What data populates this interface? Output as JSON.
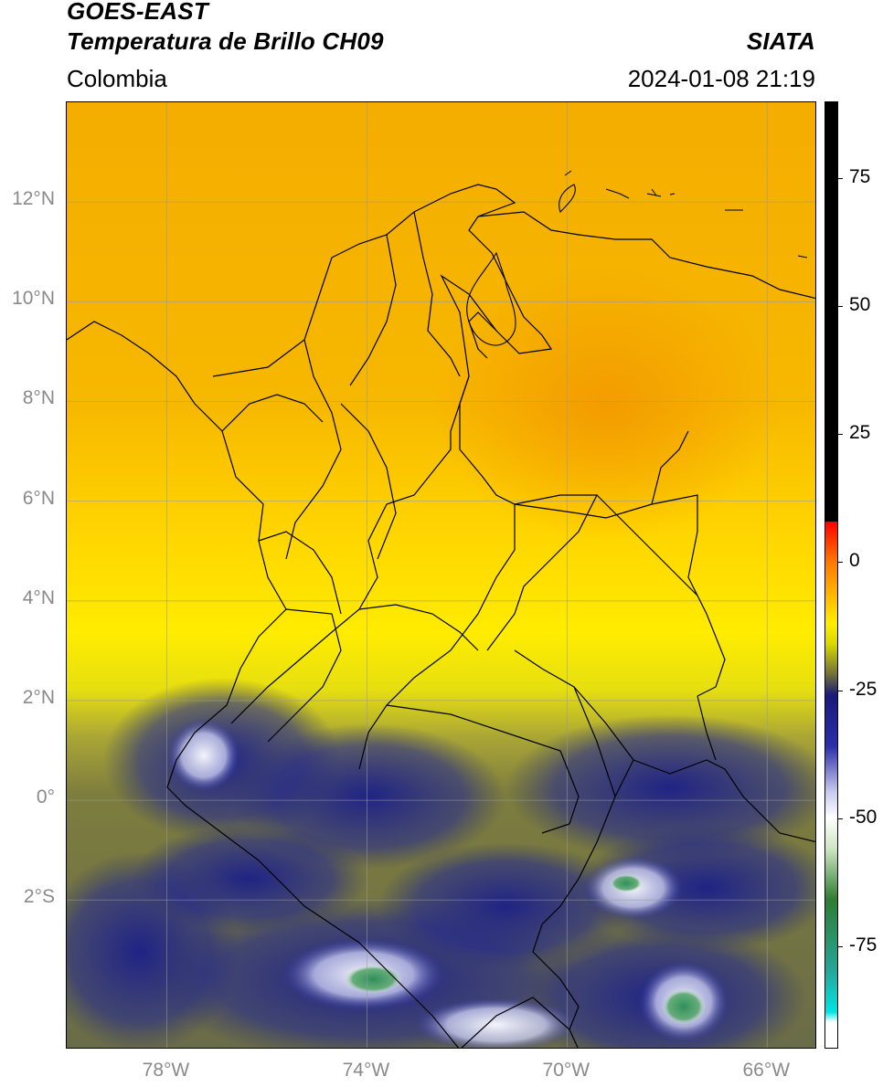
{
  "header": {
    "satellite": "GOES-EAST",
    "product": "Temperatura de Brillo CH09",
    "brand": "SIATA",
    "region": "Colombia",
    "datetime": "2024-01-08 21:19"
  },
  "map": {
    "lon_range": [
      -80,
      -65
    ],
    "lat_range": [
      -5,
      14
    ],
    "lat_ticks": [
      {
        "value": 12,
        "label": "12°N"
      },
      {
        "value": 10,
        "label": "10°N"
      },
      {
        "value": 8,
        "label": "8°N"
      },
      {
        "value": 6,
        "label": "6°N"
      },
      {
        "value": 4,
        "label": "4°N"
      },
      {
        "value": 2,
        "label": "2°N"
      },
      {
        "value": 0,
        "label": "0°"
      },
      {
        "value": -2,
        "label": "2°S"
      }
    ],
    "lon_ticks": [
      {
        "value": -78,
        "label": "78°W"
      },
      {
        "value": -74,
        "label": "74°W"
      },
      {
        "value": -70,
        "label": "70°W"
      },
      {
        "value": -66,
        "label": "66°W"
      }
    ],
    "colors": {
      "warm_north": "#f5a400",
      "warm_center": "#ffd000",
      "yellow": "#ffee00",
      "olive": "#8a8a3a",
      "dark_olive": "#5a5e4a",
      "navy": "#1a237e",
      "white_cloud": "#eef0f8",
      "green_core": "#3e8e4e",
      "border": "#000000"
    }
  },
  "colorbar": {
    "range": [
      -95,
      90
    ],
    "ticks": [
      {
        "value": 75,
        "label": "75"
      },
      {
        "value": 50,
        "label": "50"
      },
      {
        "value": 25,
        "label": "25"
      },
      {
        "value": 0,
        "label": "0"
      },
      {
        "value": -25,
        "label": "-25"
      },
      {
        "value": -50,
        "label": "-50"
      },
      {
        "value": -75,
        "label": "-75"
      }
    ],
    "stops": [
      {
        "value": 90,
        "color": "#000000"
      },
      {
        "value": 8,
        "color": "#000000"
      },
      {
        "value": 7.9,
        "color": "#ff0000"
      },
      {
        "value": 0,
        "color": "#ff7a00"
      },
      {
        "value": -12,
        "color": "#ffee00"
      },
      {
        "value": -16,
        "color": "#d8d800"
      },
      {
        "value": -22,
        "color": "#6f6f3a"
      },
      {
        "value": -26,
        "color": "#1a1a7a"
      },
      {
        "value": -36,
        "color": "#2b2fa8"
      },
      {
        "value": -45,
        "color": "#c9cbee"
      },
      {
        "value": -50,
        "color": "#ffffff"
      },
      {
        "value": -56,
        "color": "#cfe6c4"
      },
      {
        "value": -66,
        "color": "#2e7d32"
      },
      {
        "value": -80,
        "color": "#26a69a"
      },
      {
        "value": -88,
        "color": "#00e5e5"
      },
      {
        "value": -90,
        "color": "#ffffff"
      },
      {
        "value": -95,
        "color": "#ffffff"
      }
    ]
  }
}
